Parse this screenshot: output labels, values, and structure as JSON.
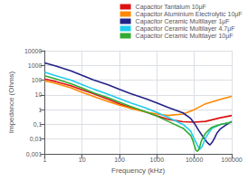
{
  "chart_data": {
    "type": "line",
    "xlabel": "Frequency (kHz)",
    "ylabel": "Impedance (Ohms)",
    "log": true,
    "grid": true,
    "legend": "upper right",
    "xlim": [
      1,
      100000
    ],
    "ylim": [
      0.001,
      10000
    ],
    "xticks": [
      1,
      10,
      100,
      1000,
      10000,
      100000
    ],
    "yticks": [
      {
        "value": 0.001,
        "label": "0,001"
      },
      {
        "value": 0.01,
        "label": "0,01"
      },
      {
        "value": 0.1,
        "label": "0,1"
      },
      1,
      10,
      100,
      1000,
      10000
    ],
    "series": [
      {
        "name": "Capacitor Tantalum 10μF",
        "color": "#DD1111",
        "x": [
          1,
          2,
          5,
          10,
          20,
          50,
          100,
          200,
          500,
          1000,
          2000,
          5000,
          10000,
          20000,
          50000,
          100000
        ],
        "values": [
          120,
          80,
          42,
          22,
          12,
          5,
          2.5,
          1.4,
          0.7,
          0.38,
          0.22,
          0.15,
          0.14,
          0.16,
          0.28,
          0.4
        ]
      },
      {
        "name": "Capacitor Aluminium Electrolytic 10μF",
        "color": "#FF8800",
        "x": [
          1,
          2,
          5,
          10,
          20,
          50,
          100,
          200,
          500,
          1000,
          2000,
          5000,
          10000,
          20000,
          50000,
          100000
        ],
        "values": [
          90,
          60,
          30,
          15,
          8,
          3.5,
          2.0,
          1.2,
          0.7,
          0.5,
          0.4,
          0.5,
          1.0,
          2.5,
          5.0,
          8.0
        ]
      },
      {
        "name": "Capacitor Ceramic Multilayer 1μF",
        "color": "#222288",
        "x": [
          1,
          2,
          5,
          10,
          20,
          50,
          100,
          200,
          500,
          1000,
          2000,
          5000,
          8000,
          10000,
          13000,
          18000,
          22000,
          26000,
          30000,
          35000,
          40000,
          50000,
          70000,
          100000
        ],
        "values": [
          1500,
          900,
          430,
          210,
          105,
          48,
          24,
          12,
          5.5,
          2.8,
          1.4,
          0.6,
          0.25,
          0.12,
          0.04,
          0.012,
          0.006,
          0.004,
          0.006,
          0.012,
          0.025,
          0.05,
          0.09,
          0.16
        ]
      },
      {
        "name": "Capacitor Ceramic Multilayer 4.7μF",
        "color": "#22CCEE",
        "x": [
          1,
          2,
          5,
          10,
          20,
          50,
          100,
          200,
          500,
          1000,
          2000,
          5000,
          8000,
          10000,
          12000,
          14000,
          16000,
          18000,
          20000,
          25000,
          30000,
          50000,
          100000
        ],
        "values": [
          350,
          200,
          100,
          50,
          25,
          11,
          5.5,
          2.8,
          1.3,
          0.65,
          0.3,
          0.1,
          0.035,
          0.01,
          0.004,
          0.002,
          0.003,
          0.006,
          0.012,
          0.03,
          0.055,
          0.1,
          0.14
        ]
      },
      {
        "name": "Capacitor Ceramic Multilayer 10μF",
        "color": "#33AA33",
        "x": [
          1,
          2,
          5,
          10,
          20,
          50,
          100,
          200,
          500,
          1000,
          2000,
          5000,
          8000,
          9000,
          10000,
          11000,
          12000,
          13000,
          14000,
          15000,
          17000,
          20000,
          25000,
          30000,
          50000,
          100000
        ],
        "values": [
          200,
          120,
          58,
          29,
          14,
          6.5,
          3.2,
          1.6,
          0.72,
          0.36,
          0.16,
          0.055,
          0.018,
          0.009,
          0.004,
          0.0018,
          0.0015,
          0.0018,
          0.003,
          0.006,
          0.013,
          0.025,
          0.045,
          0.065,
          0.1,
          0.14
        ]
      }
    ]
  }
}
